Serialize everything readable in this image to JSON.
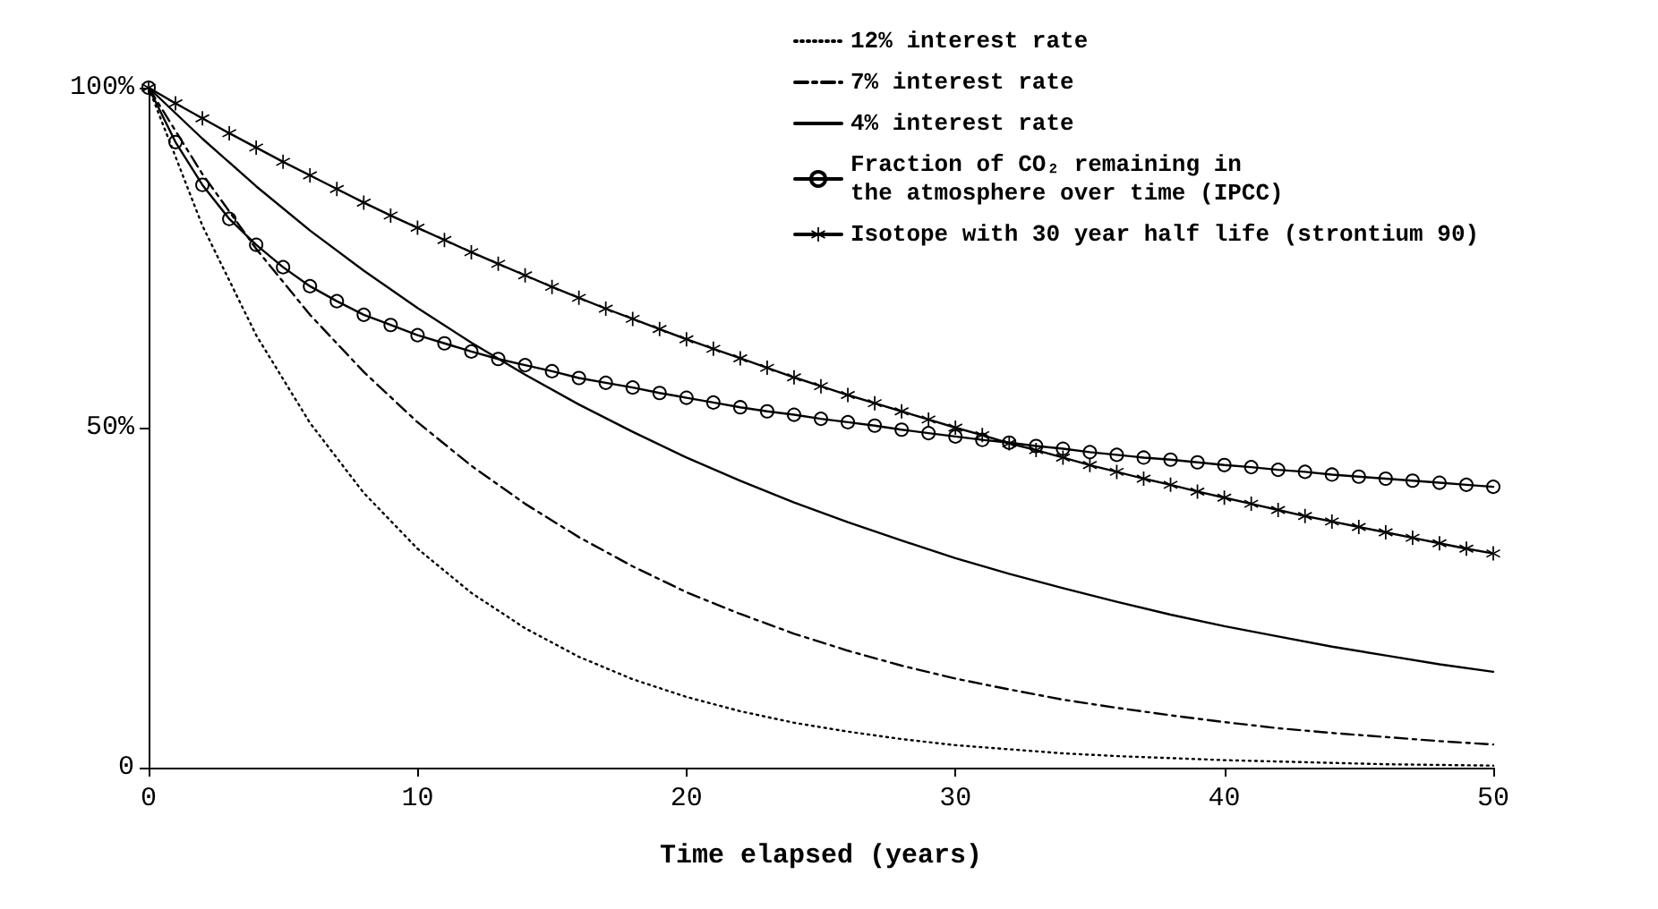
{
  "chart_data": {
    "type": "line",
    "xlabel": "Time elapsed (years)",
    "xlim": [
      0,
      50
    ],
    "xticks": [
      0,
      10,
      20,
      30,
      40,
      50
    ],
    "ylim": [
      0,
      100
    ],
    "yticks": [
      0,
      {
        "value": 50,
        "label": "50%"
      },
      {
        "value": 100,
        "label": "100%"
      }
    ],
    "grid": false,
    "legend": "top right",
    "series": [
      {
        "name": "12% interest rate",
        "color": "#000000",
        "line_style": "dotted",
        "marker": "none",
        "x": [
          0,
          2,
          4,
          6,
          8,
          10,
          12,
          14,
          16,
          18,
          20,
          22,
          24,
          26,
          28,
          30,
          32,
          34,
          36,
          38,
          40,
          42,
          44,
          46,
          48,
          50
        ],
        "values": [
          100,
          79.7,
          63.6,
          50.7,
          40.4,
          32.2,
          25.7,
          20.5,
          16.3,
          13.0,
          10.4,
          8.3,
          6.6,
          5.3,
          4.2,
          3.3,
          2.7,
          2.1,
          1.7,
          1.4,
          1.1,
          0.9,
          0.7,
          0.5,
          0.4,
          0.3
        ]
      },
      {
        "name": "7% interest rate",
        "color": "#000000",
        "line_style": "dashed",
        "marker": "none",
        "x": [
          0,
          2,
          4,
          6,
          8,
          10,
          12,
          14,
          16,
          18,
          20,
          22,
          24,
          26,
          28,
          30,
          32,
          34,
          36,
          38,
          40,
          42,
          44,
          46,
          48,
          50
        ],
        "values": [
          100,
          87.3,
          76.3,
          66.6,
          58.2,
          50.8,
          44.4,
          38.8,
          33.9,
          29.6,
          25.8,
          22.6,
          19.7,
          17.2,
          15.0,
          13.1,
          11.5,
          10.0,
          8.8,
          7.7,
          6.7,
          5.8,
          5.1,
          4.5,
          3.9,
          3.4
        ]
      },
      {
        "name": "4% interest rate",
        "color": "#000000",
        "line_style": "solid",
        "marker": "none",
        "x": [
          0,
          2,
          4,
          6,
          8,
          10,
          12,
          14,
          16,
          18,
          20,
          22,
          24,
          26,
          28,
          30,
          32,
          34,
          36,
          38,
          40,
          42,
          44,
          46,
          48,
          50
        ],
        "values": [
          100,
          92.5,
          85.5,
          79.0,
          73.1,
          67.6,
          62.5,
          57.8,
          53.4,
          49.4,
          45.6,
          42.2,
          39.0,
          36.1,
          33.4,
          30.8,
          28.5,
          26.4,
          24.4,
          22.5,
          20.8,
          19.3,
          17.8,
          16.5,
          15.2,
          14.1
        ]
      },
      {
        "name": "Fraction of CO₂ remaining in\nthe atmosphere over time (IPCC)",
        "color": "#000000",
        "line_style": "solid",
        "marker": "circle",
        "x": [
          0,
          1,
          2,
          3,
          4,
          5,
          6,
          7,
          8,
          9,
          10,
          11,
          12,
          13,
          14,
          15,
          16,
          17,
          18,
          19,
          20,
          21,
          22,
          23,
          24,
          25,
          26,
          27,
          28,
          29,
          30,
          31,
          32,
          33,
          34,
          35,
          36,
          37,
          38,
          39,
          40,
          41,
          42,
          43,
          44,
          45,
          46,
          47,
          48,
          49,
          50
        ],
        "values": [
          100,
          92.0,
          85.7,
          80.7,
          76.9,
          73.6,
          70.8,
          68.6,
          66.6,
          65.1,
          63.6,
          62.4,
          61.2,
          60.1,
          59.2,
          58.3,
          57.3,
          56.6,
          55.9,
          55.1,
          54.4,
          53.7,
          53.0,
          52.4,
          51.9,
          51.3,
          50.8,
          50.3,
          49.7,
          49.2,
          48.7,
          48.2,
          47.8,
          47.3,
          46.9,
          46.4,
          46.0,
          45.6,
          45.3,
          44.9,
          44.5,
          44.2,
          43.8,
          43.5,
          43.1,
          42.8,
          42.5,
          42.2,
          41.9,
          41.6,
          41.3
        ]
      },
      {
        "name": "Isotope with 30 year half life (strontium 90)",
        "color": "#000000",
        "line_style": "solid",
        "marker": "cross",
        "x": [
          0,
          1,
          2,
          3,
          4,
          5,
          6,
          7,
          8,
          9,
          10,
          11,
          12,
          13,
          14,
          15,
          16,
          17,
          18,
          19,
          20,
          21,
          22,
          23,
          24,
          25,
          26,
          27,
          28,
          29,
          30,
          31,
          32,
          33,
          34,
          35,
          36,
          37,
          38,
          39,
          40,
          41,
          42,
          43,
          44,
          45,
          46,
          47,
          48,
          49,
          50
        ],
        "values": [
          100,
          97.7,
          95.5,
          93.3,
          91.2,
          89.1,
          87.1,
          85.1,
          83.1,
          81.2,
          79.4,
          77.6,
          75.8,
          74.1,
          72.4,
          70.7,
          69.1,
          67.5,
          66.0,
          64.5,
          63.0,
          61.6,
          60.2,
          58.8,
          57.4,
          56.1,
          54.8,
          53.6,
          52.4,
          51.2,
          50.0,
          48.9,
          47.7,
          46.7,
          45.6,
          44.5,
          43.5,
          42.5,
          41.6,
          40.6,
          39.7,
          38.8,
          37.9,
          37.0,
          36.2,
          35.4,
          34.6,
          33.8,
          33.0,
          32.2,
          31.5
        ]
      }
    ]
  }
}
